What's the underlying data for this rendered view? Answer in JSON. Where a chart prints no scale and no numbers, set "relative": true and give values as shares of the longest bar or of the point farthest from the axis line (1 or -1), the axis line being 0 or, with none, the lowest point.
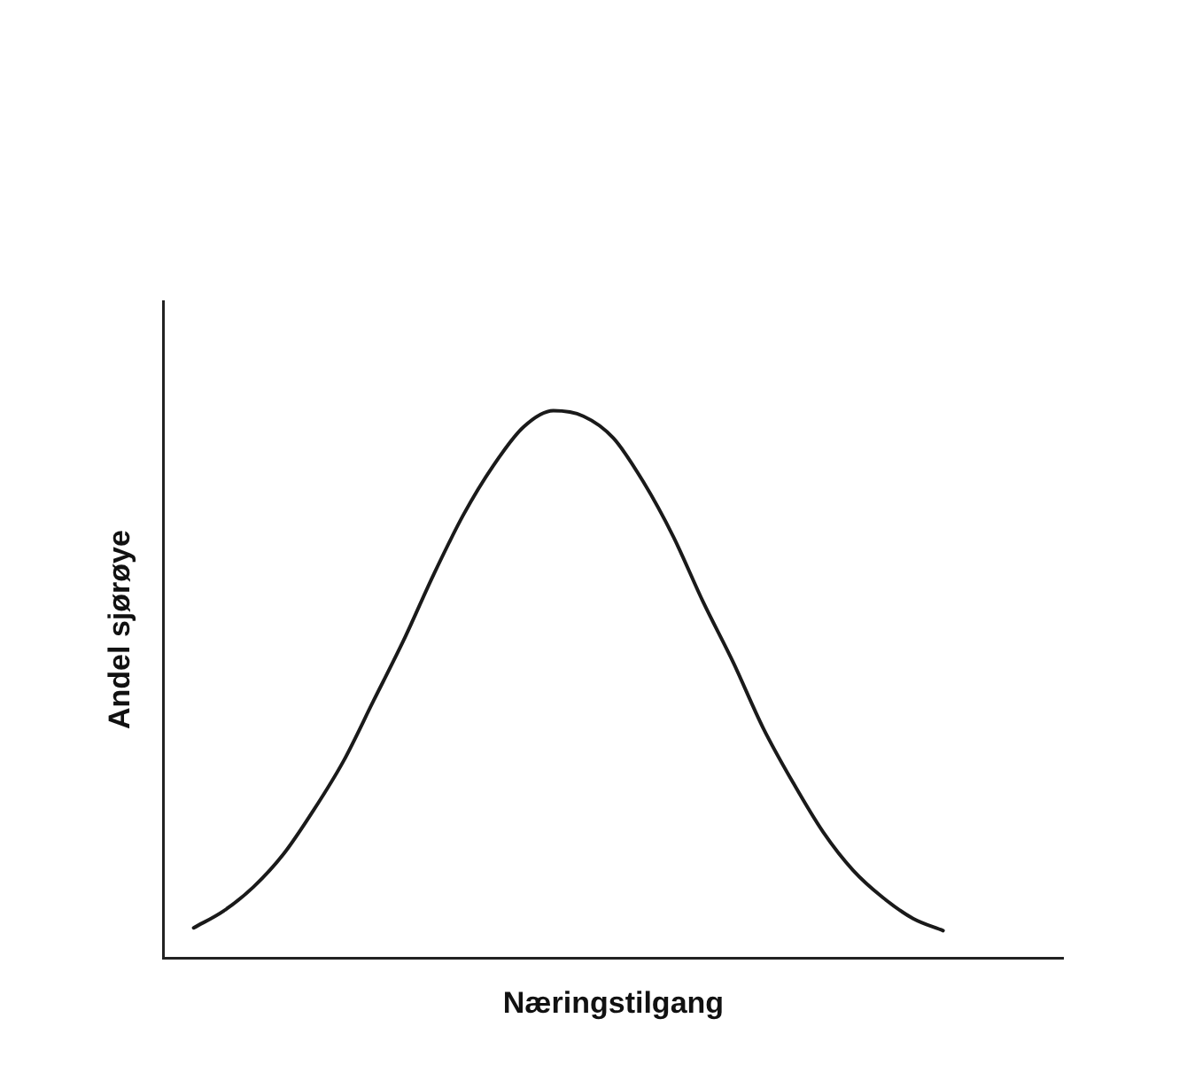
{
  "chart_data": {
    "type": "line",
    "relative": true,
    "xlabel": "Næringstilgang",
    "ylabel": "Andel sjørøye",
    "categories": [
      null,
      null,
      null,
      null,
      null,
      null,
      null,
      null,
      null,
      null,
      null,
      null,
      null,
      null,
      null,
      null,
      null,
      null,
      null,
      null,
      null,
      null,
      null,
      null,
      null,
      null,
      null,
      null,
      null,
      null,
      null
    ],
    "series": [
      {
        "color": "#1a1a1a",
        "values": [
          null,
          0.055,
          0.086,
          0.13,
          0.19,
          0.27,
          0.36,
          0.47,
          0.58,
          0.7,
          0.81,
          0.9,
          0.97,
          1,
          0.99,
          0.95,
          0.87,
          0.77,
          0.65,
          0.54,
          0.42,
          0.32,
          0.23,
          0.16,
          0.11,
          0.072,
          0.05,
          null,
          null,
          null,
          null
        ]
      }
    ],
    "grid": false,
    "legend": false,
    "marker": "none",
    "line_style": "solid"
  }
}
